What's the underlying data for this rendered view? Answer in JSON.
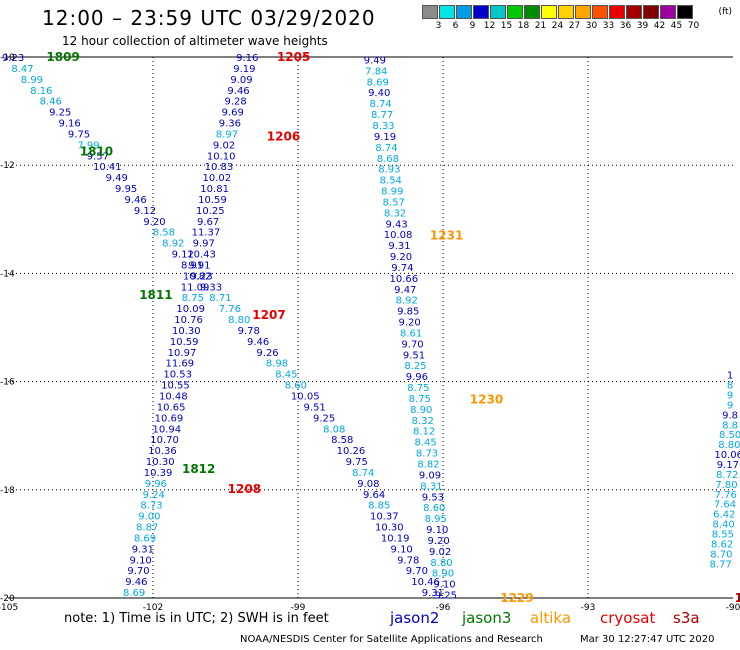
{
  "header": {
    "title": "12:00 – 23:59 UTC 03/29/2020",
    "subtitle": "12 hour collection of altimeter wave heights"
  },
  "legend": {
    "unit": "(ft)",
    "labels": [
      "3",
      "6",
      "9",
      "12",
      "15",
      "18",
      "21",
      "24",
      "27",
      "30",
      "33",
      "36",
      "39",
      "42",
      "45",
      "70"
    ],
    "colors": [
      "#8c8c8c",
      "#00e5e5",
      "#009ee5",
      "#0000c8",
      "#00c8c8",
      "#00c800",
      "#008c00",
      "#ffff00",
      "#ffd200",
      "#ffa500",
      "#ff5000",
      "#e60000",
      "#a50000",
      "#820000",
      "#a000a0",
      "#000000"
    ]
  },
  "map": {
    "x_ticks": [
      "-105",
      "-102",
      "-99",
      "-96",
      "-93",
      "-90"
    ],
    "y_ticks": [
      "-10",
      "-12",
      "-14",
      "-16",
      "-18",
      "-20"
    ]
  },
  "chart_data": {
    "type": "table",
    "lon_range": [
      -105,
      -90
    ],
    "lat_range": [
      -20,
      -10
    ],
    "grid": true,
    "colors": {
      "jason2": "#0000c8",
      "jason3": "#007800",
      "altika": "#ff9600",
      "cryosat": "#e60000",
      "s3a": "#aa0000",
      "light": "#00aae6"
    },
    "tracks": [
      {
        "x": [
          0.7,
          2.0,
          3.3,
          4.6,
          5.9,
          7.2,
          8.5,
          9.8,
          11.1,
          12.4,
          13.7,
          15.0,
          16.3,
          17.6,
          18.9,
          20.2,
          21.5,
          22.8,
          24.1,
          25.4,
          26.7,
          28.0,
          29.3,
          30.6,
          31.9,
          33.2,
          34.5,
          35.8,
          37.1,
          38.4,
          39.7,
          41.0,
          42.3,
          43.6,
          45.0,
          46.1,
          47.3,
          48.1,
          49.0,
          49.7,
          50.5,
          51.2,
          51.9,
          52.6,
          53.4,
          54.3,
          55.2,
          56.4,
          57.6,
          58.6
        ],
        "y": [
          0,
          0.22,
          0.44,
          0.66,
          0.88,
          1.1,
          1.32,
          1.54,
          1.76,
          1.98,
          2.2,
          2.42,
          2.64,
          2.86,
          3.08,
          3.3,
          3.52,
          3.74,
          3.96,
          4.18,
          4.4,
          4.62,
          4.84,
          5.06,
          5.28,
          5.5,
          5.72,
          5.94,
          6.16,
          6.38,
          6.6,
          6.82,
          7.04,
          7.26,
          7.48,
          7.7,
          7.92,
          8.14,
          8.36,
          8.58,
          8.8,
          9.02,
          9.24,
          9.46,
          9.68,
          9.9,
          10.12,
          10.34,
          10.56,
          10.78
        ],
        "values": [
          "9.23",
          "8.47",
          "8.99",
          "8.16",
          "8.46",
          "9.25",
          "9.16",
          "9.75",
          "7.99",
          "9.57",
          "10.41",
          "9.49",
          "9.95",
          "9.46",
          "9.12",
          "9.20",
          "8.58",
          "8.92",
          "9.12",
          "8.91",
          "9.23",
          "9.33",
          "8.71",
          "7.76",
          "8.80",
          "9.78",
          "9.46",
          "9.26",
          "8.98",
          "8.45",
          "8.60",
          "10.05",
          "9.51",
          "9.25",
          "8.08",
          "8.58",
          "10.26",
          "9.75",
          "8.74",
          "9.08",
          "9.64",
          "8.85",
          "10.37",
          "10.30",
          "10.19",
          "9.10",
          "9.78",
          "9.70",
          "10.46",
          "9.31"
        ],
        "shades": [
          "d",
          "l",
          "l",
          "l",
          "l",
          "d",
          "d",
          "d",
          "l",
          "d",
          "d",
          "d",
          "d",
          "d",
          "d",
          "d",
          "l",
          "l",
          "d",
          "d",
          "d",
          "d",
          "l",
          "l",
          "l",
          "d",
          "d",
          "d",
          "l",
          "l",
          "l",
          "d",
          "d",
          "d",
          "l",
          "d",
          "d",
          "d",
          "l",
          "d",
          "d",
          "l",
          "d",
          "d",
          "d",
          "d",
          "d",
          "d",
          "d",
          "d"
        ],
        "label": "1809",
        "label_at": [
          7.6,
          0
        ],
        "label_color": "jason3",
        "extra_labels": [
          [
            "1810",
            12.2,
            1.9,
            "jason3"
          ],
          [
            "1811",
            20.4,
            4.8,
            "jason3"
          ],
          [
            "1812",
            26.3,
            8.3,
            "jason3"
          ]
        ]
      },
      {
        "x": [
          33.0,
          32.6,
          32.2,
          31.8,
          31.4,
          31.0,
          30.6,
          30.2,
          29.8,
          29.4,
          29.1,
          28.8,
          28.5,
          28.2,
          27.9,
          27.6,
          27.3,
          27.0,
          26.7,
          26.4,
          26.1,
          25.8,
          25.5,
          25.2,
          24.9,
          24.6,
          24.3,
          24.0,
          23.7,
          23.4,
          23.1,
          22.8,
          22.5,
          22.2,
          21.9,
          21.6,
          21.3,
          21.0,
          20.7,
          20.4,
          20.1,
          19.8,
          19.5,
          19.2,
          18.9,
          18.6,
          18.3,
          18.0,
          17.7,
          17.4
        ],
        "y": [
          0,
          0.22,
          0.44,
          0.66,
          0.88,
          1.1,
          1.32,
          1.54,
          1.76,
          1.98,
          2.2,
          2.42,
          2.64,
          2.86,
          3.08,
          3.3,
          3.52,
          3.74,
          3.96,
          4.18,
          4.4,
          4.62,
          4.84,
          5.06,
          5.28,
          5.5,
          5.72,
          5.94,
          6.16,
          6.38,
          6.6,
          6.82,
          7.04,
          7.26,
          7.48,
          7.7,
          7.92,
          8.14,
          8.36,
          8.58,
          8.8,
          9.02,
          9.24,
          9.46,
          9.68,
          9.9,
          10.12,
          10.34,
          10.56,
          10.78
        ],
        "values": [
          "9.16",
          "9.19",
          "9.09",
          "9.46",
          "9.28",
          "9.69",
          "9.36",
          "8.97",
          "9.02",
          "10.10",
          "10.83",
          "10.02",
          "10.81",
          "10.59",
          "10.25",
          "9.67",
          "11.37",
          "9.97",
          "10.43",
          "9.91",
          "10.82",
          "11.09",
          "8.75",
          "10.09",
          "10.76",
          "10.30",
          "10.59",
          "10.97",
          "11.69",
          "10.53",
          "10.55",
          "10.48",
          "10.65",
          "10.69",
          "10.94",
          "10.70",
          "10.36",
          "10.30",
          "10.39",
          "9.96",
          "9.24",
          "8.73",
          "9.00",
          "8.87",
          "8.69",
          "9.31",
          "9.10",
          "9.70",
          "9.46",
          "8.69"
        ],
        "shades": [
          "d",
          "d",
          "d",
          "d",
          "d",
          "d",
          "d",
          "l",
          "d",
          "d",
          "d",
          "d",
          "d",
          "d",
          "d",
          "d",
          "d",
          "d",
          "d",
          "d",
          "d",
          "d",
          "l",
          "d",
          "d",
          "d",
          "d",
          "d",
          "d",
          "d",
          "d",
          "d",
          "d",
          "d",
          "d",
          "d",
          "d",
          "d",
          "d",
          "l",
          "l",
          "l",
          "l",
          "l",
          "l",
          "d",
          "d",
          "d",
          "d",
          "l"
        ],
        "label": "1205",
        "label_at": [
          39.4,
          0
        ],
        "label_color": "cryosat",
        "extra_labels": [
          [
            "1206",
            38.0,
            1.6,
            "cryosat"
          ],
          [
            "1207",
            36.0,
            5.2,
            "cryosat"
          ],
          [
            "1208",
            32.6,
            8.7,
            "cryosat"
          ]
        ]
      },
      {
        "x": [
          50.6,
          50.8,
          51.0,
          51.2,
          51.4,
          51.6,
          51.8,
          52.0,
          52.2,
          52.4,
          52.6,
          52.8,
          53.0,
          53.2,
          53.4,
          53.6,
          53.8,
          54.0,
          54.2,
          54.4,
          54.6,
          54.8,
          55.0,
          55.2,
          55.4,
          55.6,
          55.8,
          56.0,
          56.2,
          56.4,
          56.6,
          56.8,
          57.0,
          57.2,
          57.4,
          57.6,
          57.8,
          58.0,
          58.2,
          58.4,
          58.6,
          58.8,
          59.0,
          59.2,
          59.4,
          59.6,
          59.8,
          60.0,
          60.2,
          60.4
        ],
        "y": [
          0.05,
          0.27,
          0.49,
          0.71,
          0.93,
          1.15,
          1.37,
          1.59,
          1.81,
          2.03,
          2.25,
          2.47,
          2.69,
          2.91,
          3.13,
          3.35,
          3.57,
          3.79,
          4.01,
          4.23,
          4.45,
          4.67,
          4.89,
          5.11,
          5.33,
          5.55,
          5.77,
          5.99,
          6.21,
          6.43,
          6.65,
          6.87,
          7.09,
          7.31,
          7.53,
          7.75,
          7.97,
          8.19,
          8.41,
          8.63,
          8.85,
          9.07,
          9.29,
          9.51,
          9.73,
          9.95,
          10.17,
          10.39,
          10.61,
          10.83
        ],
        "values": [
          "9.49",
          "7.84",
          "8.69",
          "9.40",
          "8.74",
          "8.77",
          "8.33",
          "9.19",
          "8.74",
          "8.68",
          "8.93",
          "8.54",
          "8.99",
          "8.57",
          "8.32",
          "9.43",
          "10.08",
          "9.31",
          "9.20",
          "9.74",
          "10.66",
          "9.47",
          "8.92",
          "9.85",
          "9.20",
          "8.61",
          "9.70",
          "9.51",
          "8.25",
          "9.96",
          "8.75",
          "8.75",
          "8.90",
          "8.32",
          "8.12",
          "8.45",
          "8.73",
          "8.82",
          "9.09",
          "8.31",
          "9.53",
          "8.60",
          "8.95",
          "9.10",
          "9.20",
          "9.02",
          "8.80",
          "8.90",
          "9.10",
          "9.25"
        ],
        "shades": [
          "d",
          "l",
          "l",
          "d",
          "l",
          "l",
          "l",
          "d",
          "l",
          "l",
          "l",
          "l",
          "l",
          "l",
          "l",
          "d",
          "d",
          "d",
          "d",
          "d",
          "d",
          "d",
          "l",
          "d",
          "d",
          "l",
          "d",
          "d",
          "l",
          "d",
          "l",
          "l",
          "l",
          "l",
          "l",
          "l",
          "l",
          "l",
          "d",
          "l",
          "d",
          "l",
          "l",
          "d",
          "d",
          "d",
          "l",
          "l",
          "d",
          "d"
        ],
        "label": "1231",
        "label_at": [
          60.5,
          3.6
        ],
        "label_color": "altika",
        "extra_labels": [
          [
            "1230",
            66.0,
            6.9,
            "altika"
          ],
          [
            "1229",
            70.2,
            10.9,
            "altika"
          ]
        ]
      },
      {
        "x": [
          99.6,
          99.6,
          99.6,
          99.6,
          99.6,
          99.6,
          99.6,
          99.5,
          99.4,
          99.3,
          99.2,
          99.1,
          99.0,
          98.9,
          98.8,
          98.7,
          98.6,
          98.5,
          98.4,
          98.3
        ],
        "y": [
          6.4,
          6.6,
          6.8,
          7.0,
          7.2,
          7.4,
          7.6,
          7.8,
          8.0,
          8.2,
          8.4,
          8.6,
          8.8,
          9.0,
          9.2,
          9.4,
          9.6,
          9.8,
          10.0,
          10.2
        ],
        "values": [
          "1",
          "8",
          "9",
          "9",
          "9.8",
          "8.8",
          "8.50",
          "8.80",
          "10.06",
          "9.17",
          "8.72",
          "7.80",
          "7.76",
          "7.64",
          "6.42",
          "8.40",
          "8.55",
          "8.62",
          "8.70",
          "8.77"
        ],
        "shades": [
          "d",
          "l",
          "l",
          "l",
          "d",
          "l",
          "l",
          "l",
          "d",
          "d",
          "l",
          "l",
          "l",
          "l",
          "l",
          "l",
          "l",
          "l",
          "l",
          "l"
        ],
        "label": "1",
        "label_at": [
          100.8,
          10.9
        ],
        "label_color": "s3a",
        "extra_labels": []
      }
    ]
  },
  "footer": {
    "note": "note:  1) Time is in UTC;  2) SWH is in feet",
    "satellites": {
      "jason2": "jason2",
      "jason3": "jason3",
      "altika": "altika",
      "cryosat": "cryosat",
      "s3a": "s3a"
    },
    "credit": "NOAA/NESDIS Center for Satellite Applications and Research",
    "generated": "Mar 30 12:27:47 UTC 2020"
  }
}
